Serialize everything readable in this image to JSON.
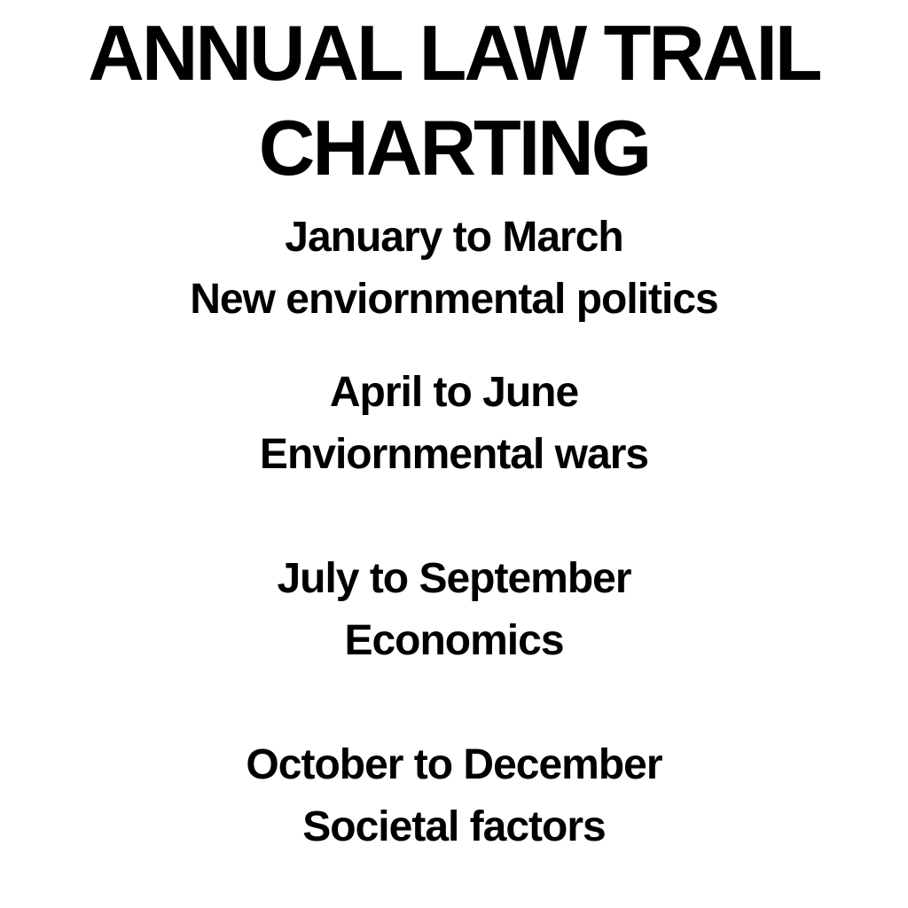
{
  "page": {
    "background_color": "#ffffff",
    "text_color": "#000000"
  },
  "title": "ANNUAL LAW TRAIL CHARTING",
  "sections": [
    {
      "period": "January to March",
      "topic": "New enviornmental politics"
    },
    {
      "period": "April to June",
      "topic": "Enviornmental wars"
    },
    {
      "period": "July to September",
      "topic": "Economics"
    },
    {
      "period": "October to December",
      "topic": "Societal factors"
    }
  ]
}
